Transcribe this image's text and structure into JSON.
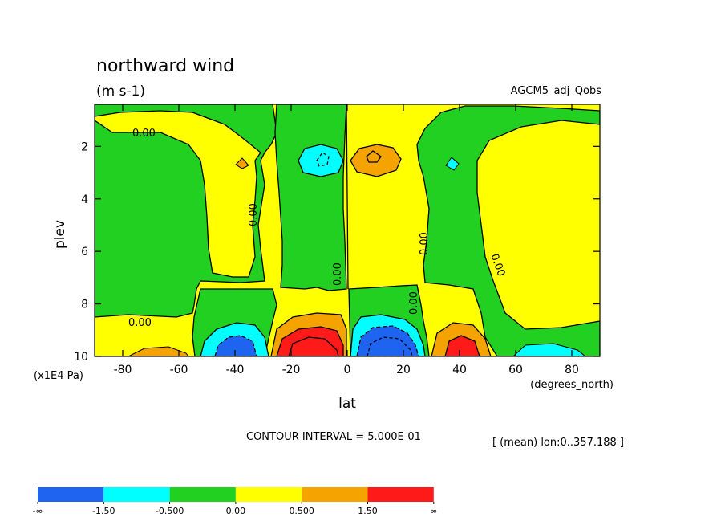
{
  "chart_data": {
    "type": "heatmap",
    "title": "northward wind",
    "units": "(m s-1)",
    "dataset": "AGCM5_adj_Qobs",
    "xlabel": "lat",
    "x_units": "(degrees_north)",
    "ylabel": "plev",
    "y_units": "(x1E4 Pa)",
    "x_range": [
      -90,
      90
    ],
    "y_range": [
      10,
      0.4
    ],
    "x_ticks": [
      -80,
      -60,
      -40,
      -20,
      0,
      20,
      40,
      60,
      80
    ],
    "y_ticks": [
      2,
      4,
      6,
      8,
      10
    ],
    "contour_interval_text": "CONTOUR INTERVAL = 5.000E-01",
    "mean_text": "[ (mean) lon:0..357.188 ]",
    "contour_labels": [
      "0.00",
      "0.00",
      "0.00",
      "0.00",
      "0.00",
      "0.00",
      "0.00"
    ],
    "legend": {
      "colors": [
        "#1f64f0",
        "#00ffff",
        "#22d022",
        "#ffff00",
        "#f5a300",
        "#ff1a1a"
      ],
      "labels": [
        "-∞",
        "-1.50",
        "-0.500",
        "0.00",
        "0.500",
        "1.50",
        "∞"
      ]
    },
    "grid": false
  }
}
